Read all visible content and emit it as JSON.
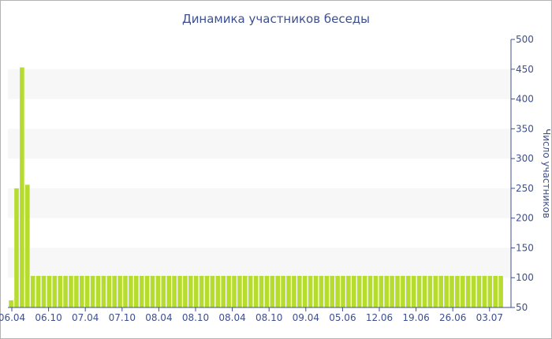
{
  "chart_data": {
    "type": "bar",
    "title": "Динамика участников беседы",
    "ylabel": "Число участников",
    "xlabel": "",
    "ylim": [
      50,
      500
    ],
    "yticks": [
      50,
      100,
      150,
      200,
      250,
      300,
      350,
      400,
      450,
      500
    ],
    "y_axis_position": "right",
    "grid": "alternating horizontal bands",
    "bar_color": "#b5dc2e",
    "band_color": "#f7f7f7",
    "axis_color": "#3d4f8f",
    "x_tick_labels": [
      "06.04",
      "06.10",
      "07.04",
      "07.10",
      "08.04",
      "08.10",
      "08.04",
      "08.10",
      "09.04",
      "05.06",
      "12.06",
      "19.06",
      "26.06",
      "03.07"
    ],
    "values": [
      62,
      250,
      453,
      256,
      103,
      103,
      103,
      103,
      103,
      103,
      103,
      103,
      103,
      103,
      103,
      103,
      103,
      103,
      103,
      103,
      103,
      103,
      103,
      103,
      103,
      103,
      103,
      103,
      103,
      103,
      103,
      103,
      103,
      103,
      103,
      103,
      103,
      103,
      103,
      103,
      103,
      103,
      103,
      103,
      103,
      103,
      103,
      103,
      103,
      103,
      103,
      103,
      103,
      103,
      103,
      103,
      103,
      103,
      103,
      103,
      103,
      103,
      103,
      103,
      103,
      103,
      103,
      103,
      103,
      103,
      103,
      103,
      103,
      103,
      103,
      103,
      103,
      103,
      103,
      103,
      103,
      103,
      103,
      103,
      103,
      103,
      103,
      103,
      103,
      103,
      103
    ]
  }
}
